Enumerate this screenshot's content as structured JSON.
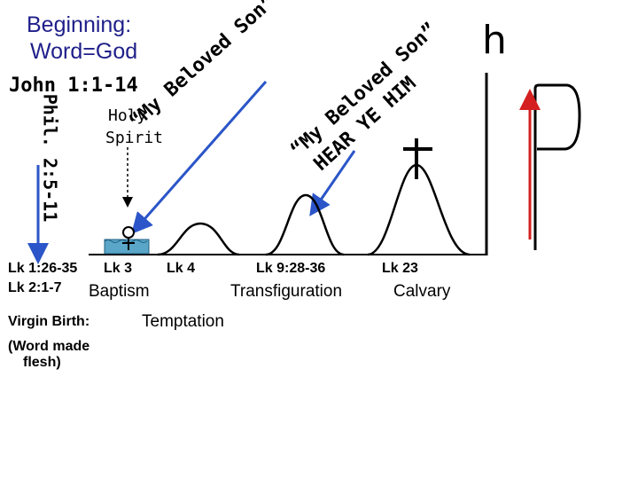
{
  "heading": {
    "line1": "Beginning:",
    "line2": "Word=God"
  },
  "john_ref": "John 1:1-14",
  "phil_ref": "Phil. 2:5-11",
  "holy_spirit": {
    "line1": "Holy",
    "line2": "Spirit"
  },
  "my_beloved_son": "“My Beloved Son”",
  "beloved_son_hear": {
    "line1": "“My Beloved Son”",
    "line2": "HEAR YE HIM"
  },
  "h_mark": "h",
  "events": {
    "lk1": "Lk 1:26-35",
    "lk2": "Lk 2:1-7",
    "lk3": "Lk 3",
    "baptism": "Baptism",
    "lk4": "Lk 4",
    "temptation": "Temptation",
    "lk9": "Lk 9:28-36",
    "transfiguration": "Transfiguration",
    "lk23": "Lk 23",
    "calvary": "Calvary"
  },
  "virgin_birth": "Virgin Birth:",
  "word_made_flesh": {
    "line1": "(Word made",
    "line2": "flesh)"
  },
  "colors": {
    "heading": "#1f1f8a",
    "arrow_blue": "#2b55c8",
    "arrow_red": "#d42020",
    "water": "#5aa6c8"
  }
}
